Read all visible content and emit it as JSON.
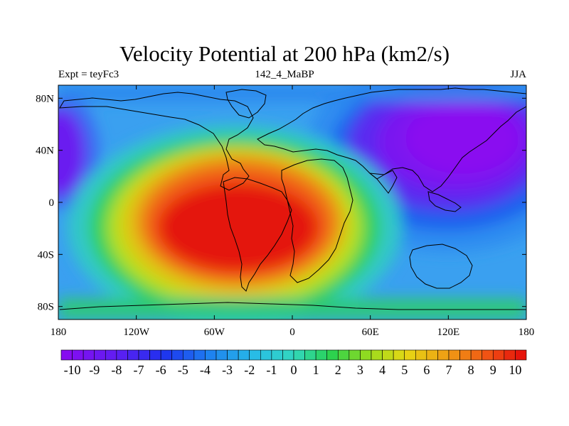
{
  "title": "Velocity Potential at 200 hPa (km2/s)",
  "subtitle_left": "Expt = teyFc3",
  "subtitle_center": "142_4_MaBP",
  "subtitle_right": "JJA",
  "chart_data": {
    "type": "heatmap",
    "variable": "Velocity Potential at 200 hPa",
    "units": "km2/s",
    "x_range": [
      -180,
      180
    ],
    "y_range": [
      -90,
      90
    ],
    "x_ticks": [
      {
        "value": -180,
        "label": "180"
      },
      {
        "value": -120,
        "label": "120W"
      },
      {
        "value": -60,
        "label": "60W"
      },
      {
        "value": 0,
        "label": "0"
      },
      {
        "value": 60,
        "label": "60E"
      },
      {
        "value": 120,
        "label": "120E"
      },
      {
        "value": 180,
        "label": "180"
      }
    ],
    "y_ticks": [
      {
        "value": 80,
        "label": "80N"
      },
      {
        "value": 40,
        "label": "40N"
      },
      {
        "value": 0,
        "label": "0"
      },
      {
        "value": -40,
        "label": "40S"
      },
      {
        "value": -80,
        "label": "80S"
      }
    ],
    "colorbar": {
      "min": -10.5,
      "max": 10.5,
      "step": 0.5,
      "labels": [
        "-10",
        "-9",
        "-8",
        "-7",
        "-6",
        "-5",
        "-4",
        "-3",
        "-2",
        "-1",
        "0",
        "1",
        "2",
        "3",
        "4",
        "5",
        "6",
        "7",
        "8",
        "9",
        "10"
      ]
    },
    "field_features": [
      {
        "name": "positive maximum (divergent outflow region)",
        "lon": -40,
        "lat": -25,
        "value": 10
      },
      {
        "name": "negative minimum (Asian/Pacific center)",
        "lon": 120,
        "lat": 40,
        "value": -10
      },
      {
        "name": "negative minimum (eastern Pacific edge)",
        "lon": -175,
        "lat": 30,
        "value": -10
      }
    ]
  }
}
